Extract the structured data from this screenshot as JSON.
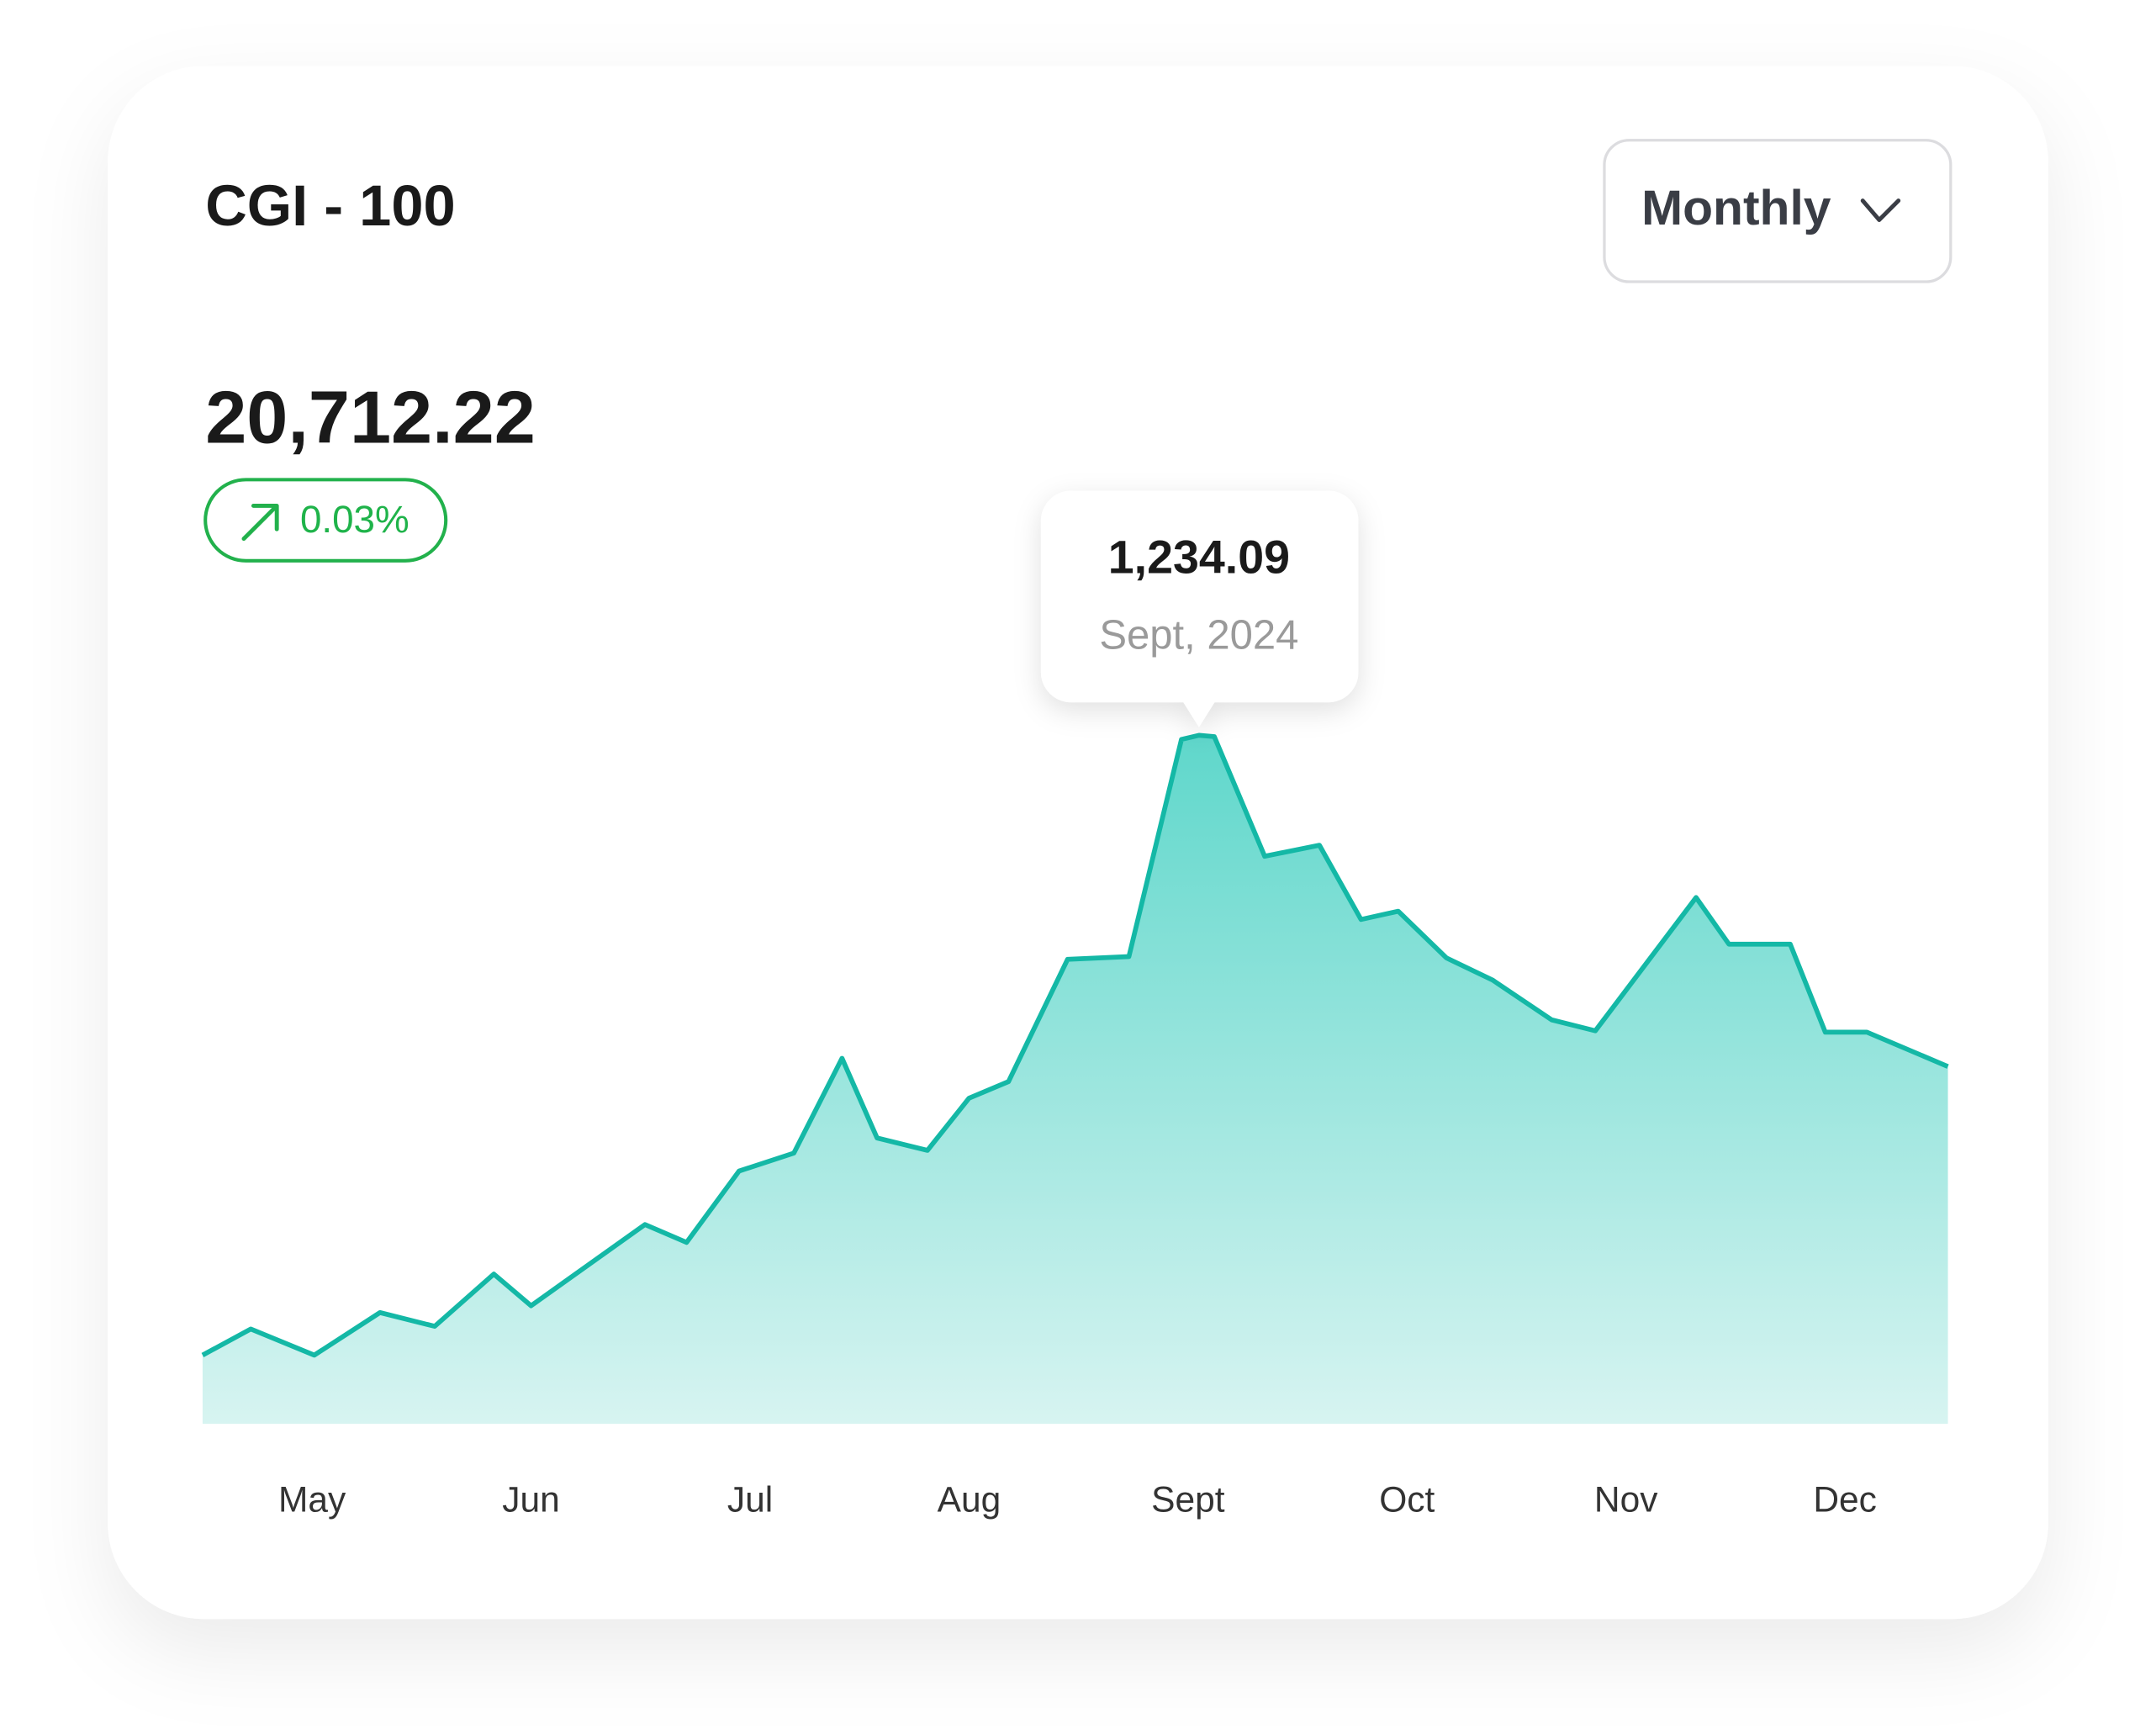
{
  "header": {
    "title": "CGI - 100",
    "price": "20,712.22",
    "change": "0.03%"
  },
  "dropdown": "Monthly",
  "chart_data": {
    "type": "area",
    "color": "#14b8a6",
    "x": [
      4.5,
      4.72,
      5.01,
      5.31,
      5.56,
      5.83,
      6.0,
      6.52,
      6.71,
      6.95,
      7.2,
      7.42,
      7.58,
      7.81,
      8.0,
      8.18,
      8.45,
      8.73,
      8.97,
      9.05,
      9.12,
      9.35,
      9.6,
      9.79,
      9.96,
      10.18,
      10.39,
      10.66,
      10.86,
      11.32,
      11.47,
      11.75,
      11.91,
      12.1,
      12.47
    ],
    "values": [
      123.2,
      170.0,
      123.2,
      199.5,
      174.9,
      268.5,
      211.8,
      357.2,
      325.2,
      453.2,
      485.3,
      655.2,
      512.4,
      490.2,
      583.8,
      613.4,
      832.6,
      837.5,
      1226.7,
      1234.09,
      1231.7,
      1017.3,
      1037.1,
      904.0,
      918.8,
      835.1,
      795.6,
      724.2,
      704.5,
      943.4,
      859.7,
      859.7,
      702.0,
      702.0,
      640.5
    ],
    "xlim": [
      4.5,
      12.47
    ],
    "xticks": [
      {
        "value": 5,
        "label": "May"
      },
      {
        "value": 6,
        "label": "Jun"
      },
      {
        "value": 7,
        "label": "Jul"
      },
      {
        "value": 8,
        "label": "Aug"
      },
      {
        "value": 9,
        "label": "Sept"
      },
      {
        "value": 10,
        "label": "Oct"
      },
      {
        "value": 11,
        "label": "Nov"
      },
      {
        "value": 12,
        "label": "Dec"
      }
    ],
    "ylim": [
      0,
      1234.09
    ],
    "tooltip": {
      "value": 1234.09,
      "label": "1,234.09",
      "date": "Sept, 2024"
    }
  }
}
